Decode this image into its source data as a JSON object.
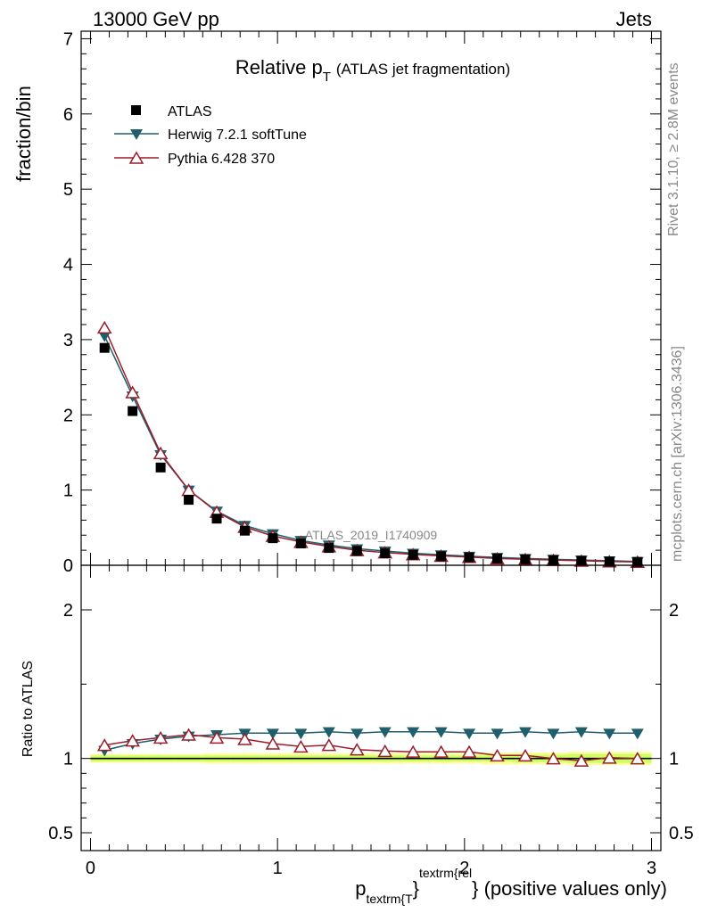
{
  "header": {
    "left": "13000 GeV pp",
    "right": "Jets"
  },
  "side": {
    "rivet": "Rivet 3.1.10, ≥ 2.8M events",
    "mcplots": "mcplots.cern.ch [arXiv:1306.3436]"
  },
  "colors": {
    "atlas": "#000000",
    "herwig": "#1f5f6b",
    "pythia": "#9b1c2a",
    "band_inner": "#ccff66",
    "band_outer": "#ffff99"
  },
  "chart_data": [
    {
      "type": "scatter",
      "title_main": "Relative p",
      "title_sub": "T",
      "title_rest": "(ATLAS jet fragmentation)",
      "ylabel": "fraction/bin",
      "watermark": "ATLAS_2019_I1740909",
      "xlim": [
        -0.05,
        3.05
      ],
      "ylim": [
        0,
        7.1
      ],
      "yticks": [
        0,
        1,
        2,
        3,
        4,
        5,
        6,
        7
      ],
      "ytick_labels": [
        "0",
        "1",
        "2",
        "3",
        "4",
        "5",
        "6",
        "7"
      ],
      "x": [
        0.075,
        0.225,
        0.375,
        0.525,
        0.675,
        0.825,
        0.975,
        1.125,
        1.275,
        1.425,
        1.575,
        1.725,
        1.875,
        2.025,
        2.175,
        2.325,
        2.475,
        2.625,
        2.775,
        2.925
      ],
      "legend": [
        "ATLAS",
        "Herwig 7.2.1 softTune",
        "Pythia 6.428 370"
      ],
      "series": [
        {
          "name": "ATLAS",
          "marker": "square",
          "values": [
            2.89,
            2.05,
            1.3,
            0.87,
            0.62,
            0.46,
            0.36,
            0.29,
            0.23,
            0.19,
            0.16,
            0.14,
            0.12,
            0.105,
            0.09,
            0.08,
            0.07,
            0.06,
            0.05,
            0.045
          ]
        },
        {
          "name": "Herwig 7.2.1 softTune",
          "marker": "triangle-down",
          "values": [
            3.05,
            2.25,
            1.47,
            1.0,
            0.72,
            0.53,
            0.42,
            0.33,
            0.27,
            0.22,
            0.19,
            0.16,
            0.14,
            0.12,
            0.105,
            0.09,
            0.08,
            0.07,
            0.06,
            0.05
          ]
        },
        {
          "name": "Pythia 6.428 370",
          "marker": "triangle-up",
          "values": [
            3.16,
            2.3,
            1.49,
            1.0,
            0.71,
            0.51,
            0.39,
            0.31,
            0.25,
            0.2,
            0.17,
            0.145,
            0.125,
            0.11,
            0.09,
            0.08,
            0.07,
            0.06,
            0.05,
            0.045
          ]
        }
      ]
    },
    {
      "type": "line",
      "ylabel": "Ratio to ATLAS",
      "xlabel_main": "p",
      "xlabel_sub": "textrm{T",
      "xlabel_brace": "}",
      "xlabel_sup": "textrm{rel",
      "xlabel_rest": "} (positive values only)",
      "xlim": [
        -0.05,
        3.05
      ],
      "ylim": [
        0.38,
        2.3
      ],
      "yticks": [
        0.5,
        1,
        2
      ],
      "ytick_labels": [
        "0.5",
        "1",
        "2"
      ],
      "xticks": [
        0,
        1,
        2,
        3
      ],
      "xtick_labels": [
        "0",
        "1",
        "2",
        "3"
      ],
      "x": [
        0.075,
        0.225,
        0.375,
        0.525,
        0.675,
        0.825,
        0.975,
        1.125,
        1.275,
        1.425,
        1.575,
        1.725,
        1.875,
        2.025,
        2.175,
        2.325,
        2.475,
        2.625,
        2.775,
        2.925
      ],
      "band_inner": [
        0.02,
        0.02,
        0.02,
        0.02,
        0.02,
        0.02,
        0.02,
        0.02,
        0.02,
        0.02,
        0.02,
        0.02,
        0.02,
        0.02,
        0.02,
        0.025,
        0.025,
        0.03,
        0.03,
        0.03
      ],
      "band_outer": [
        0.03,
        0.03,
        0.03,
        0.03,
        0.035,
        0.035,
        0.035,
        0.035,
        0.035,
        0.035,
        0.035,
        0.035,
        0.035,
        0.035,
        0.04,
        0.04,
        0.04,
        0.045,
        0.045,
        0.045
      ],
      "series": [
        {
          "name": "Herwig 7.2.1 softTune",
          "marker": "triangle-down",
          "values": [
            1.055,
            1.1,
            1.13,
            1.15,
            1.16,
            1.17,
            1.17,
            1.17,
            1.18,
            1.17,
            1.18,
            1.18,
            1.18,
            1.17,
            1.17,
            1.18,
            1.17,
            1.18,
            1.17,
            1.17
          ]
        },
        {
          "name": "Pythia 6.428 370",
          "marker": "triangle-up",
          "values": [
            1.09,
            1.12,
            1.14,
            1.16,
            1.14,
            1.13,
            1.1,
            1.08,
            1.09,
            1.06,
            1.05,
            1.045,
            1.045,
            1.045,
            1.02,
            1.02,
            1.0,
            0.985,
            1.005,
            1.0
          ]
        }
      ]
    }
  ]
}
